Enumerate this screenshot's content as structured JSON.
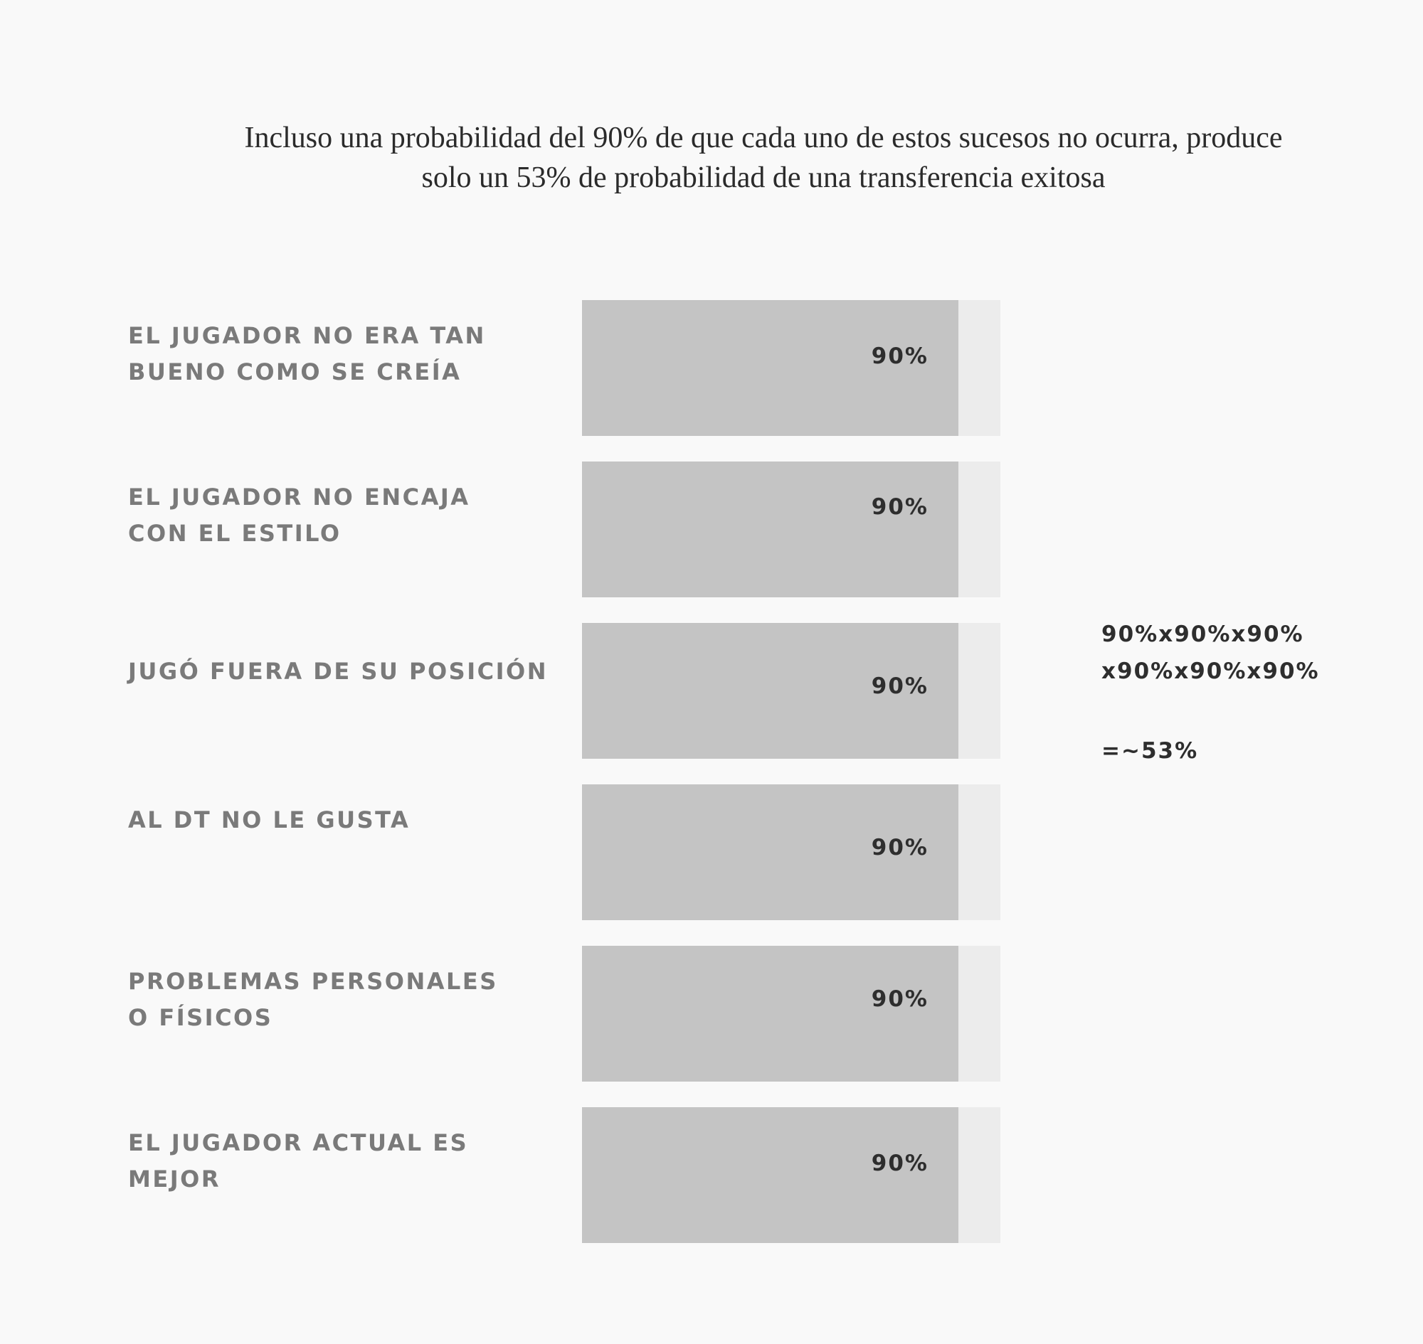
{
  "chart_data": {
    "type": "bar",
    "title_lines": [
      "Incluso una probabilidad del 90% de que cada uno de estos sucesos no ocurra, produce",
      "solo un 53% de probabilidad de una transferencia exitosa"
    ],
    "categories": [
      "EL JUGADOR NO ERA TAN\nBUENO COMO SE CREÍA",
      "EL JUGADOR NO ENCAJA\nCON EL ESTILO",
      "JUGÓ FUERA DE SU POSICIÓN",
      "AL DT NO LE GUSTA",
      "PROBLEMAS PERSONALES\nO FÍSICOS",
      "EL JUGADOR ACTUAL ES MEJOR"
    ],
    "values": [
      90,
      90,
      90,
      90,
      90,
      90
    ],
    "value_labels": [
      "90%",
      "90%",
      "90%",
      "90%",
      "90%",
      "90%"
    ],
    "xlim": [
      0,
      100
    ],
    "orientation": "horizontal",
    "grid": false,
    "colors": {
      "fill": "#c4c4c4",
      "track": "#ececec",
      "background": "#f9f9f9"
    },
    "annotation": {
      "line1": "90%x90%x90%",
      "line2": "x90%x90%x90%",
      "result": "=~53%"
    }
  }
}
